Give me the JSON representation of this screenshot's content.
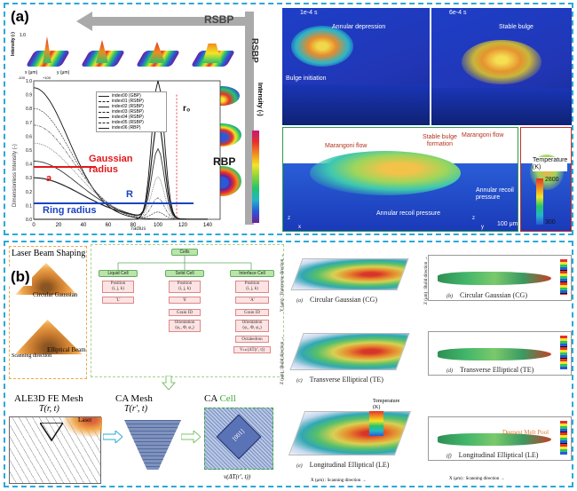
{
  "panel_a": {
    "label": "(a)",
    "rsbp_arrow": "RSBP",
    "rsbp_vertical": "RSBP",
    "rbp_label": "RBP",
    "gaussian_radius": "Gaussian\nradius",
    "ring_radius": "Ring radius",
    "a_label": "a",
    "r_label": "R",
    "r0_label": "r₀",
    "x_label": "radius",
    "y_label": "Dimensionless Intensity (-)",
    "intensity_label": "Intensity (-)",
    "surface_axis_int": "Intensity (-)",
    "surface_axis_x": "x (μm)",
    "surface_axis_y": "y (μm)",
    "surface_tick_top": "1.0",
    "surface_tick_pos": "+100",
    "surface_tick_neg": "-100",
    "legend": [
      "index00 (GBP)",
      "index01 (RSBP)",
      "index02 (RSBP)",
      "index03 (RSBP)",
      "index04 (RSBP)",
      "index05 (RSBP)",
      "index06 (RBP)"
    ],
    "xticks": [
      "0",
      "20",
      "40",
      "60",
      "80",
      "100",
      "120",
      "140"
    ],
    "yticks": [
      "0.0",
      "0.1",
      "0.2",
      "0.3",
      "0.4",
      "0.5",
      "0.6",
      "0.7",
      "0.8",
      "0.9",
      "1.0"
    ],
    "colorbar_ticks": [
      "0",
      "0.1",
      "0.2",
      "0.3",
      "0.4",
      "0.5",
      "0.6",
      "0.7",
      "0.8",
      "0.9",
      "1"
    ],
    "sim_time_1": "1e-4 s",
    "sim_time_2": "6e-4 s",
    "annular_depression": "Annular depression",
    "bulge_initiation": "Bulge initiation",
    "stable_bulge": "Stable bulge",
    "marangoni_1": "Marangoni flow",
    "stable_bulge_formation": "Stable bulge\nformation",
    "annular_recoil_1": "Annular recoil pressure",
    "marangoni_2": "Marangoni flow",
    "annular_recoil_2": "Annular recoil\npressure",
    "temperature_label": "Temperature\n(K)",
    "temp_max": "2800",
    "temp_min": "300",
    "scale_bar": "100 μm",
    "axis_z": "z",
    "axis_x": "x",
    "axis_y": "y"
  },
  "panel_b": {
    "label": "(b)",
    "laser_beam_shaping": "Laser Beam Shaping",
    "circular_gaussian": "Circular Gaussian",
    "elliptical_beam": "Elliptical Beam",
    "scanning_direction": "Scanning direction",
    "ale3d_title": "ALE3D FE Mesh",
    "ale3d_sub": "T(r, t)",
    "laser_label": "Laser",
    "ca_mesh_title": "CA Mesh",
    "ca_mesh_sub": "T(r', t)",
    "ca_cell_title": "CA ",
    "ca_cell_title2": "Cell",
    "ca_cell_sub": "v(ΔT(r', t))",
    "ca_cell_tag": "[001]",
    "cells_head": "Cells",
    "liquid_cell": "Liquid Cell",
    "solid_cell": "Solid Cell",
    "interface_cell": "Interface Cell",
    "position": "Position",
    "ijk": "(i, j, k)",
    "state_l": "'L'",
    "state_s": "'S'",
    "state_a": "'A'",
    "grain_id": "Grain ID",
    "orientation": "Orientation",
    "euler": "(φ₁, Φ, φ₂)",
    "octahedron": "Octahedron",
    "velocity": "Vₖₗₖ(ΔT(r', t))",
    "sims": [
      {
        "tag": "(a)",
        "name": "Circular Gaussian  (CG)"
      },
      {
        "tag": "(b)",
        "name": "Circular Gaussian  (CG)"
      },
      {
        "tag": "(c)",
        "name": "Transverse Elliptical  (TE)"
      },
      {
        "tag": "(d)",
        "name": "Transverse Elliptical  (TE)"
      },
      {
        "tag": "(e)",
        "name": "Longitudinal Elliptical  (LE)"
      },
      {
        "tag": "(f)",
        "name": "Longitudinal Elliptical  (LE)"
      }
    ],
    "deepest_melt_pool": "Deepest Melt Pool",
    "temperature_k": "Temperature\n(K)",
    "y_axis_3d": "Y (μm) : Transverse direction →",
    "z_axis_3d": "Z (μm) : Build direction →",
    "x_axis_3d": "X (μm) : Scanning direction →",
    "z_axis_2d": "Z (μm) : Build direction →",
    "x_axis_2d": "X (μm) : Scanning direction →",
    "xticks_2d": [
      "0",
      "200",
      "400",
      "600",
      "800",
      "1000",
      "1200",
      "1400"
    ],
    "zticks_2d": [
      "100",
      "50",
      "0",
      "-50"
    ]
  },
  "colors": {
    "frame": "#29a9d8",
    "gaussian_red": "#e0191b",
    "ring_blue": "#1b43c4",
    "rsbp_gray": "#aaaaaa",
    "cells_green": "#b9e6a8",
    "cells_pink": "#fde3e3",
    "ca_cell_green": "#39a935",
    "orange_text": "#e07a2e"
  }
}
